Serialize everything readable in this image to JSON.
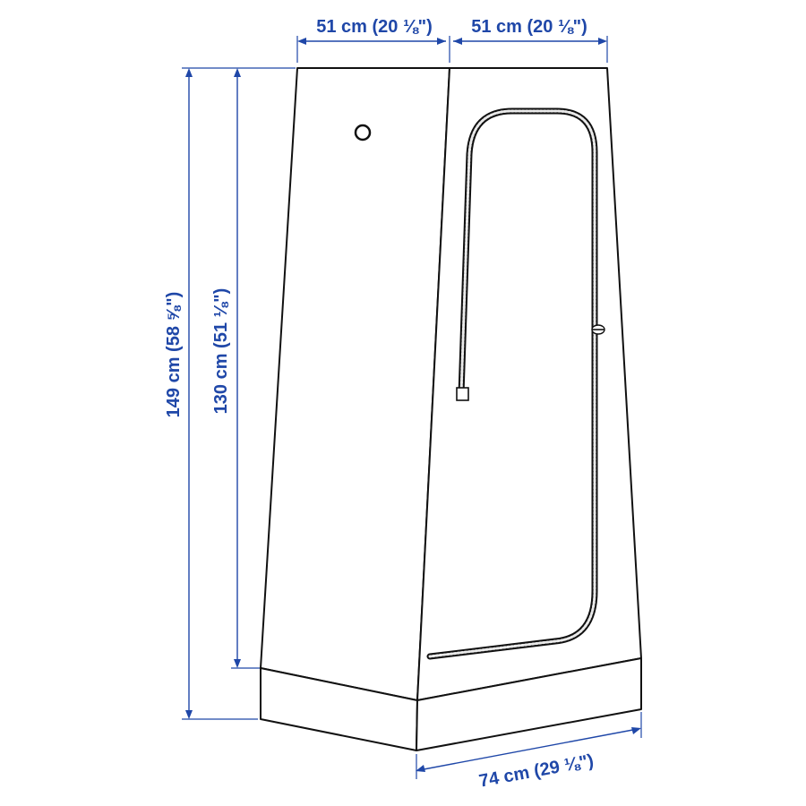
{
  "dimensions": {
    "width_left": "51 cm (20 ⅛\")",
    "width_right": "51 cm (20 ⅛\")",
    "height_total": "149 cm (58 ⅝\")",
    "height_inner": "130 cm (51 ⅛\")",
    "diagonal": "74 cm (29 ⅛\")"
  },
  "colors": {
    "dimension": "#1f47a8",
    "outline": "#111111",
    "background": "#ffffff"
  }
}
